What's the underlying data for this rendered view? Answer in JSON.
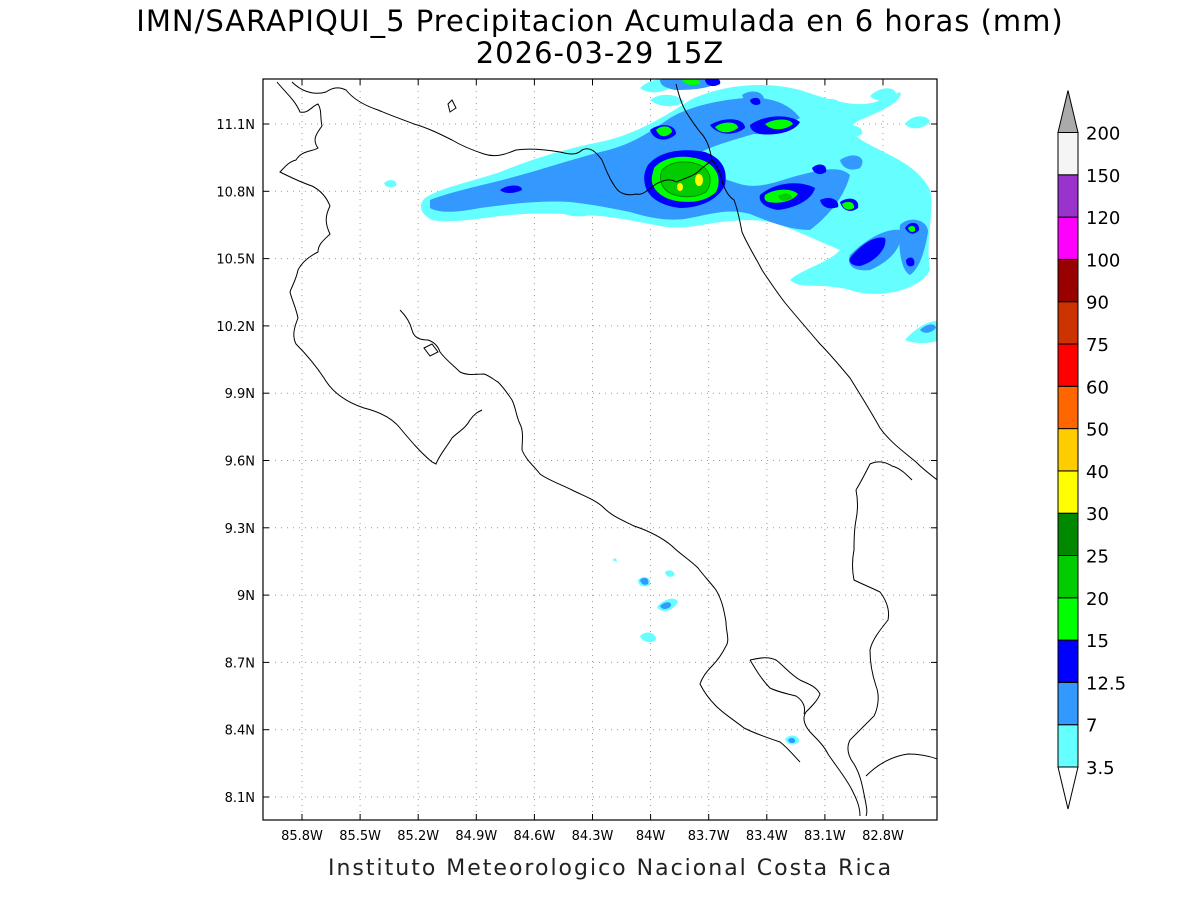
{
  "title_line1": "IMN/SARAPIQUI_5 Precipitacion Acumulada en 6 horas (mm)",
  "title_line2": "2026-03-29 15Z",
  "footer": "Instituto Meteorologico Nacional Costa Rica",
  "map": {
    "lon_range": [
      -86.03,
      -82.57
    ],
    "lat_range": [
      8.01,
      11.31
    ],
    "lon_ticks": [
      "85.8W",
      "85.5W",
      "85.2W",
      "84.9W",
      "84.6W",
      "84.3W",
      "84W",
      "83.7W",
      "83.4W",
      "83.1W",
      "82.8W"
    ],
    "lat_ticks": [
      "11.1N",
      "10.8N",
      "10.5N",
      "10.2N",
      "9.9N",
      "9.6N",
      "9.3N",
      "9N",
      "8.7N",
      "8.4N",
      "8.1N"
    ],
    "grid": "dotted"
  },
  "colorbar": {
    "unit": "mm",
    "levels": [
      {
        "label": "3.5",
        "color": "#66ffff"
      },
      {
        "label": "7",
        "color": "#3399ff"
      },
      {
        "label": "12.5",
        "color": "#0000ff"
      },
      {
        "label": "15",
        "color": "#00ff00"
      },
      {
        "label": "20",
        "color": "#00cc00"
      },
      {
        "label": "25",
        "color": "#008800"
      },
      {
        "label": "30",
        "color": "#ffff00"
      },
      {
        "label": "40",
        "color": "#ffcc00"
      },
      {
        "label": "50",
        "color": "#ff6600"
      },
      {
        "label": "60",
        "color": "#ff0000"
      },
      {
        "label": "75",
        "color": "#cc3300"
      },
      {
        "label": "90",
        "color": "#990000"
      },
      {
        "label": "100",
        "color": "#ff00ff"
      },
      {
        "label": "120",
        "color": "#9933cc"
      },
      {
        "label": "150",
        "color": "#f5f5f5"
      },
      {
        "label": "200",
        "color": "#aaaaaa"
      }
    ],
    "under_color": "#ffffff",
    "over_color": "#aaaaaa"
  }
}
